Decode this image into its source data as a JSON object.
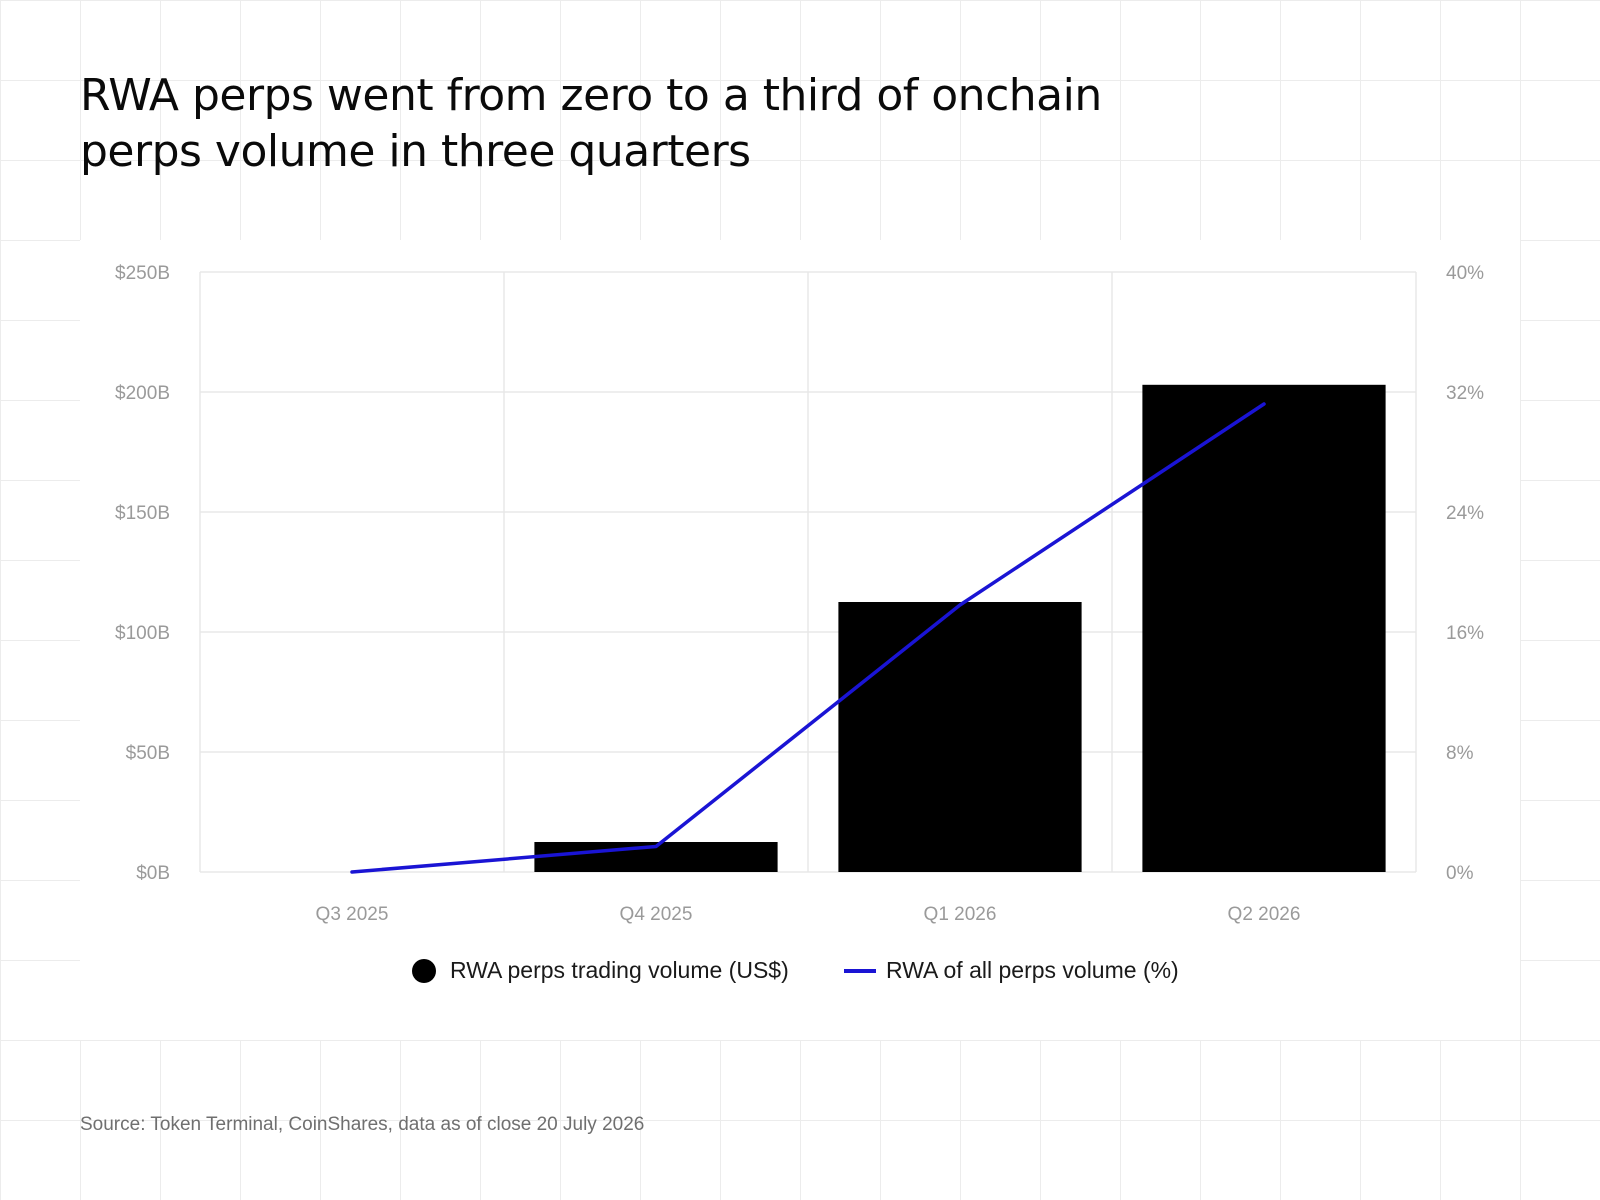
{
  "title_lines": [
    "RWA perps went from zero to a third of onchain",
    "perps volume in three quarters"
  ],
  "source": "Source: Token Terminal, CoinShares, data as of close 20 July 2026",
  "colors": {
    "bar": "#000000",
    "line": "#1a14d4",
    "grid": "#e8e8e8",
    "axis_text": "#9a9a9a"
  },
  "chart_data": {
    "type": "bar",
    "categories": [
      "Q3 2025",
      "Q4 2025",
      "Q1 2026",
      "Q2 2026"
    ],
    "series": [
      {
        "name": "RWA perps trading volume (US$)",
        "type": "bar",
        "axis": "left",
        "values": [
          0,
          12.5,
          112.5,
          203
        ]
      },
      {
        "name": "RWA of all perps volume (%)",
        "type": "line",
        "axis": "right",
        "values": [
          0,
          1.7,
          17.8,
          31.2
        ]
      }
    ],
    "y_left": {
      "ticks": [
        "$0B",
        "$50B",
        "$100B",
        "$150B",
        "$200B",
        "$250B"
      ],
      "lim": [
        0,
        250
      ]
    },
    "y_right": {
      "ticks": [
        "0%",
        "8%",
        "16%",
        "24%",
        "32%",
        "40%"
      ],
      "lim": [
        0,
        40
      ]
    },
    "grid": true,
    "legend_position": "bottom-center"
  }
}
